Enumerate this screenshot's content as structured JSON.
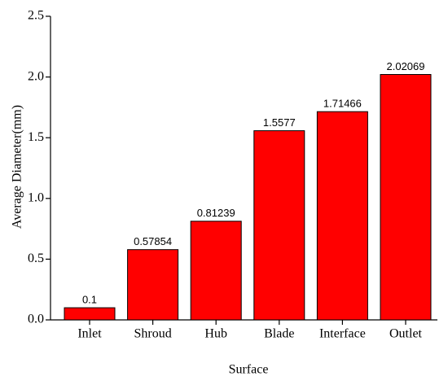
{
  "chart_data": {
    "type": "bar",
    "x_label": "Surface",
    "y_label": "Average Diameter(mm)",
    "categories": [
      "Inlet",
      "Shroud",
      "Hub",
      "Blade",
      "Interface",
      "Outlet"
    ],
    "values": [
      0.1,
      0.57854,
      0.81239,
      1.5577,
      1.71466,
      2.02069
    ],
    "color": "#ff0000",
    "ylim": [
      0,
      2.5
    ],
    "yticks": [
      {
        "value": 0,
        "label": "0.0"
      },
      0.5,
      {
        "value": 1,
        "label": "1.0"
      },
      1.5,
      {
        "value": 2,
        "label": "2.0"
      },
      2.5
    ]
  }
}
